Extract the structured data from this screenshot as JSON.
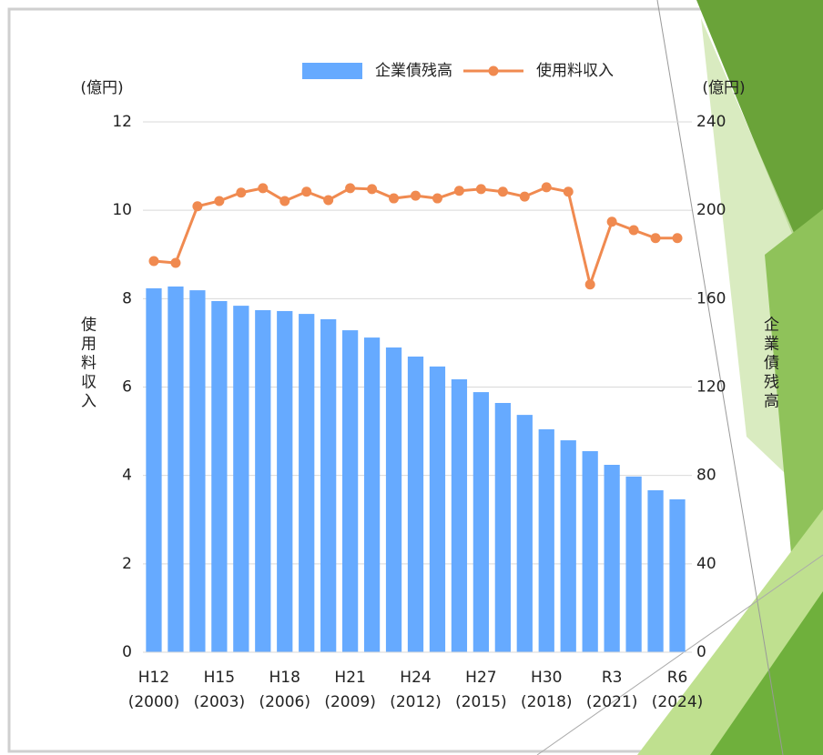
{
  "chart_data": {
    "type": "bar",
    "categories": [
      "H12",
      null,
      null,
      "H15",
      null,
      null,
      "H18",
      null,
      null,
      "H21",
      null,
      null,
      "H24",
      null,
      null,
      "H27",
      null,
      null,
      "H30",
      null,
      null,
      "R3",
      null,
      null,
      "R6"
    ],
    "category_sublabels": [
      "(2000)",
      null,
      null,
      "(2003)",
      null,
      null,
      "(2006)",
      null,
      null,
      "(2009)",
      null,
      null,
      "(2012)",
      null,
      null,
      "(2015)",
      null,
      null,
      "(2018)",
      null,
      null,
      "(2021)",
      null,
      null,
      "(2024)"
    ],
    "series": [
      {
        "name": "企業債残高",
        "type": "bar",
        "axis": "y2",
        "color": "#66aaff",
        "values": [
          164.7,
          165.5,
          163.8,
          158.9,
          156.8,
          154.8,
          154.4,
          153.1,
          150.7,
          145.7,
          142.4,
          137.9,
          133.8,
          129.3,
          123.5,
          117.7,
          112.8,
          107.4,
          100.9,
          95.9,
          91.0,
          84.8,
          79.5,
          73.3,
          69.2
        ]
      },
      {
        "name": "使用料収入",
        "type": "line",
        "color": "#f08a50",
        "values": [
          8.85,
          8.81,
          10.09,
          10.21,
          10.4,
          10.5,
          10.21,
          10.42,
          10.23,
          10.5,
          10.48,
          10.27,
          10.33,
          10.27,
          10.44,
          10.48,
          10.42,
          10.31,
          10.52,
          10.42,
          8.32,
          9.74,
          9.55,
          9.37,
          9.37
        ]
      }
    ],
    "y_label": "使用料収入",
    "y2_label": "企業債残高",
    "y_unit": "(億円)",
    "y2_unit": "(億円)",
    "ylim": [
      0,
      12
    ],
    "yticks": [
      0,
      2,
      4,
      6,
      8,
      10,
      12
    ],
    "y2lim": [
      0,
      240
    ],
    "y2ticks": [
      0,
      40,
      80,
      120,
      160,
      200,
      240
    ],
    "grid": true,
    "legend": "top"
  }
}
